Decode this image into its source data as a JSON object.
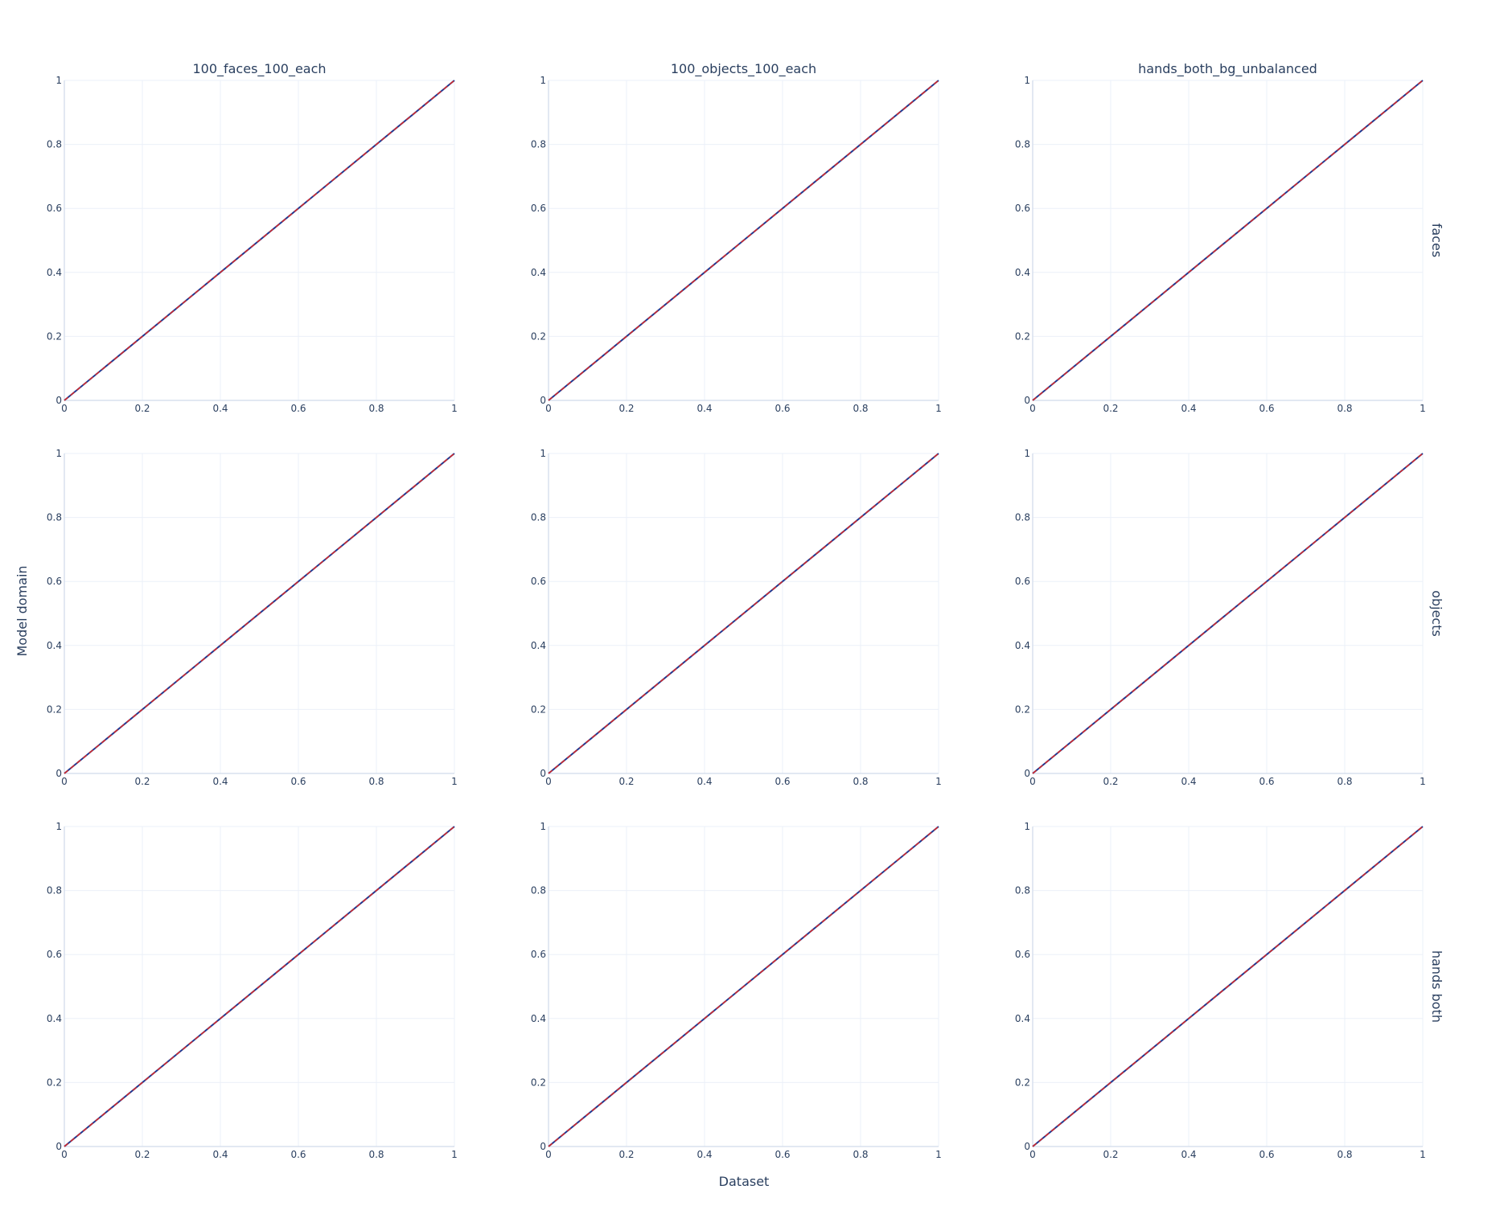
{
  "chart_data": {
    "type": "line",
    "layout": "facet-grid",
    "column_titles": [
      "100_faces_100_each",
      "100_objects_100_each",
      "hands_both_bg_unbalanced"
    ],
    "row_labels": [
      "faces",
      "objects",
      "hands both"
    ],
    "xlabel": "Dataset",
    "ylabel": "Model domain",
    "xlim": [
      0,
      1
    ],
    "ylim": [
      0,
      1
    ],
    "ticks": [
      0,
      0.2,
      0.4,
      0.6,
      0.8,
      1
    ],
    "tick_labels": [
      "0",
      "0.2",
      "0.4",
      "0.6",
      "0.8",
      "1"
    ],
    "grid": true,
    "series": [
      {
        "x": [
          0,
          1
        ],
        "y": [
          0,
          1
        ],
        "color": "#1f3a93",
        "dash": "solid"
      },
      {
        "x": [
          0,
          1
        ],
        "y": [
          0,
          1
        ],
        "color": "#d62728",
        "dash": "dashed"
      }
    ]
  },
  "colors": {
    "text": "#2a3f5f",
    "grid": "#ebf0f8",
    "zeroline": "#d8e0ee"
  }
}
